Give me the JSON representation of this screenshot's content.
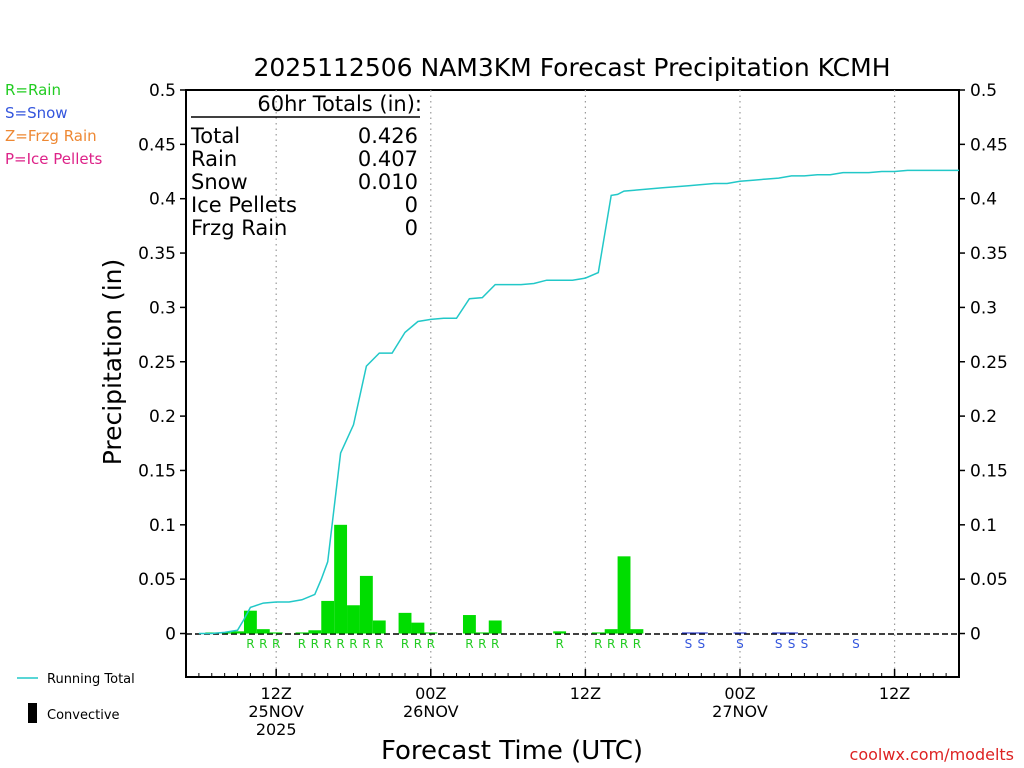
{
  "chart_data": {
    "type": "bar",
    "title": "2025112506 NAM3KM Forecast Precipitation KCMH",
    "ylabel": "Precipitation (in)",
    "xlabel": "Forecast Time (UTC)",
    "ylim": [
      -0.04,
      0.5
    ],
    "xlim_hours": [
      -1,
      59
    ],
    "y_ticks": [
      0,
      0.05,
      0.1,
      0.15,
      0.2,
      0.25,
      0.3,
      0.35,
      0.4,
      0.45,
      0.5
    ],
    "y_tick_labels": [
      "0",
      "0.05",
      "0.1",
      "0.15",
      "0.2",
      "0.25",
      "0.3",
      "0.35",
      "0.4",
      "0.45",
      "0.5"
    ],
    "x_ticks": [
      {
        "hour": 6,
        "lines": [
          "12Z",
          "25NOV",
          "2025"
        ]
      },
      {
        "hour": 18,
        "lines": [
          "00Z",
          "26NOV"
        ]
      },
      {
        "hour": 30,
        "lines": [
          "12Z"
        ]
      },
      {
        "hour": 42,
        "lines": [
          "00Z",
          "27NOV"
        ]
      },
      {
        "hour": 54,
        "lines": [
          "12Z"
        ]
      }
    ],
    "ptype_legend": [
      {
        "label": "R=Rain",
        "color": "#22cc22"
      },
      {
        "label": "S=Snow",
        "color": "#3355dd"
      },
      {
        "label": "Z=Frzg Rain",
        "color": "#ee8833"
      },
      {
        "label": "P=Ice Pellets",
        "color": "#dd2288"
      }
    ],
    "bottom_legend": {
      "running_total": "Running Total",
      "convective": "Convective",
      "running_total_color": "#22c8c8"
    },
    "totals": {
      "heading": "60hr Totals (in):",
      "rows": [
        {
          "label": "Total",
          "value": "0.426"
        },
        {
          "label": "Rain",
          "value": "0.407"
        },
        {
          "label": "Snow",
          "value": "0.010"
        },
        {
          "label": "Ice Pellets",
          "value": "0"
        },
        {
          "label": "Frzg Rain",
          "value": "0"
        }
      ]
    },
    "series": [
      {
        "name": "Hourly Precipitation",
        "hours": [
          1,
          2,
          3,
          4,
          5,
          6,
          7,
          8,
          9,
          10,
          11,
          12,
          13,
          14,
          15,
          16,
          17,
          18,
          19,
          20,
          21,
          22,
          23,
          24,
          25,
          26,
          27,
          28,
          29,
          30,
          31,
          32,
          33,
          34,
          35,
          36,
          37,
          38,
          39,
          40,
          41,
          42,
          43,
          44,
          45,
          46,
          47,
          48,
          49,
          50,
          51,
          52,
          53,
          54,
          55,
          56,
          57,
          58,
          59
        ],
        "values": [
          0.001,
          0.001,
          0.002,
          0.021,
          0.004,
          0.001,
          0,
          0.001,
          0.003,
          0.03,
          0.1,
          0.026,
          0.053,
          0.012,
          0,
          0.019,
          0.01,
          0.001,
          0,
          0,
          0.017,
          0.001,
          0.012,
          0,
          0,
          0,
          0,
          0.002,
          0,
          0,
          0.001,
          0.004,
          0.071,
          0.004,
          0,
          0,
          0,
          0.001,
          0.001,
          0,
          0,
          0.001,
          0,
          0,
          0.001,
          0.001,
          0,
          0,
          0,
          0,
          0,
          0,
          0,
          0,
          0,
          0,
          0,
          0,
          0
        ],
        "ptype": [
          "",
          "",
          "",
          "R",
          "R",
          "R",
          "",
          "R",
          "R",
          "R",
          "R",
          "R",
          "R",
          "R",
          "",
          "R",
          "R",
          "R",
          "",
          "",
          "R",
          "R",
          "R",
          "",
          "",
          "",
          "",
          "R",
          "",
          "",
          "R",
          "R",
          "R",
          "R",
          "",
          "",
          "",
          "S",
          "S",
          "",
          "",
          "S",
          "",
          "",
          "S",
          "S",
          "S",
          "",
          "",
          "",
          "S",
          "",
          "",
          "",
          "",
          "",
          "",
          "",
          ""
        ],
        "color": "#00dd00"
      },
      {
        "name": "Running Total",
        "hours": [
          0,
          1,
          2,
          3,
          3.5,
          4,
          5,
          6,
          7,
          8,
          9,
          9.5,
          10,
          11,
          12,
          13,
          14,
          15,
          16,
          17,
          18,
          19,
          20,
          21,
          22,
          23,
          24,
          25,
          26,
          27,
          28,
          29,
          30,
          31,
          32,
          32.5,
          33,
          34,
          35,
          36,
          37,
          38,
          39,
          40,
          41,
          42,
          43,
          44,
          45,
          46,
          47,
          48,
          49,
          50,
          51,
          52,
          53,
          54,
          55,
          56,
          57,
          58,
          59
        ],
        "values": [
          0,
          0,
          0.001,
          0.003,
          0.013,
          0.024,
          0.028,
          0.029,
          0.029,
          0.031,
          0.036,
          0.05,
          0.066,
          0.166,
          0.192,
          0.246,
          0.258,
          0.258,
          0.277,
          0.287,
          0.289,
          0.29,
          0.29,
          0.308,
          0.309,
          0.321,
          0.321,
          0.321,
          0.322,
          0.325,
          0.325,
          0.325,
          0.327,
          0.332,
          0.403,
          0.404,
          0.407,
          0.408,
          0.409,
          0.41,
          0.411,
          0.412,
          0.413,
          0.414,
          0.414,
          0.416,
          0.417,
          0.418,
          0.419,
          0.421,
          0.421,
          0.422,
          0.422,
          0.424,
          0.424,
          0.424,
          0.425,
          0.425,
          0.426,
          0.426,
          0.426,
          0.426,
          0.426
        ],
        "color": "#22c8c8"
      }
    ],
    "credit": "coolwx.com/modelts"
  }
}
